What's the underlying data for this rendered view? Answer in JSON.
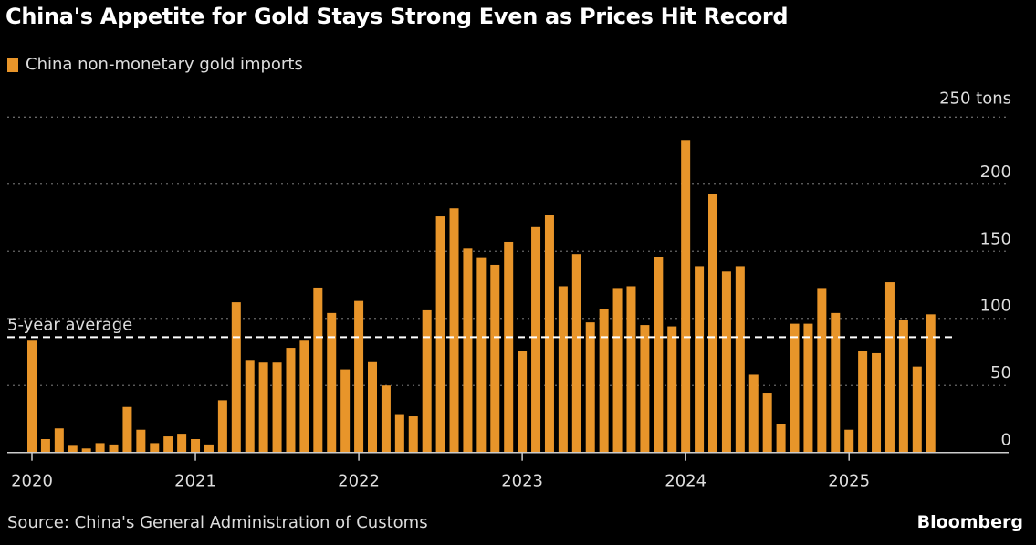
{
  "title": "China's Appetite for Gold Stays Strong Even as Prices Hit Record",
  "source": "Source: China's General Administration of Customs",
  "brand": "Bloomberg",
  "colors": {
    "bar": "#e8952a",
    "background": "#000000",
    "grid": "#666666",
    "avg_line": "#ffffff"
  },
  "chart_data": {
    "type": "bar",
    "title": "China's Appetite for Gold Stays Strong Even as Prices Hit Record",
    "legend": [
      "China non-monetary gold imports"
    ],
    "legend_placement": "top-left",
    "ylabel": "tons",
    "ylim": [
      0,
      250
    ],
    "yticks": [
      0,
      50,
      100,
      150,
      200,
      250
    ],
    "ytick_labels": [
      "0",
      "50",
      "100",
      "150",
      "200",
      "250 tons"
    ],
    "xtick_labels": [
      "2020",
      "2021",
      "2022",
      "2023",
      "2024",
      "2025"
    ],
    "grid": true,
    "start": "2020-01",
    "frequency": "monthly",
    "series": [
      {
        "name": "China non-monetary gold imports",
        "values": [
          84,
          10,
          18,
          5,
          3,
          7,
          6,
          34,
          17,
          7,
          12,
          14,
          10,
          6,
          39,
          112,
          69,
          67,
          67,
          78,
          84,
          123,
          104,
          62,
          113,
          68,
          50,
          28,
          27,
          106,
          176,
          182,
          152,
          145,
          140,
          157,
          76,
          168,
          177,
          124,
          148,
          97,
          107,
          122,
          124,
          95,
          146,
          94,
          233,
          139,
          193,
          135,
          139,
          58,
          44,
          21,
          96,
          96,
          122,
          104,
          17,
          76,
          74,
          127,
          99,
          64,
          103
        ]
      }
    ],
    "annotations": [
      {
        "label": "5-year average",
        "value": 86
      }
    ]
  }
}
